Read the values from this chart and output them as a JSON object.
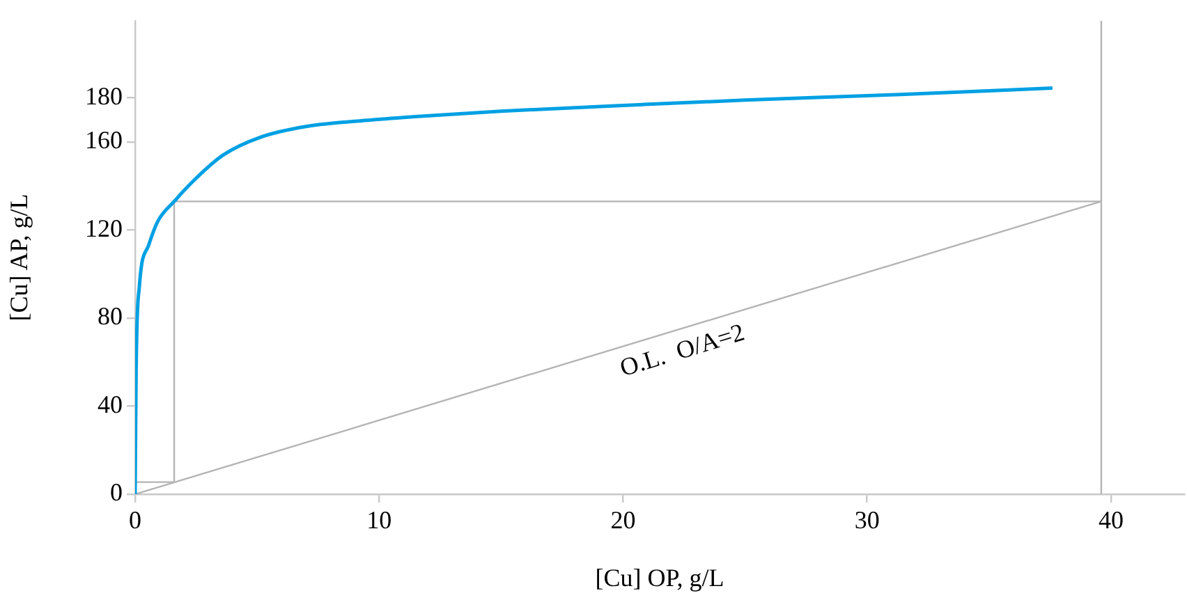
{
  "chart_data": {
    "type": "line",
    "xlabel": "[Cu] OP, g/L",
    "ylabel": "[Cu] AP, g/L",
    "xlim": [
      0,
      43
    ],
    "ylim": [
      0,
      215
    ],
    "xticks": [
      0,
      10,
      20,
      30,
      40
    ],
    "yticks": [
      0,
      40,
      80,
      120,
      160,
      180
    ],
    "grid": false,
    "legend": false,
    "marker": "none",
    "line_style": "solid",
    "series": [
      {
        "color": "#00a0e3",
        "x": [
          0,
          0.04,
          0.17,
          0.55,
          0.93,
          1.6,
          2.45,
          3.6,
          5.1,
          7.0,
          9.7,
          11.6,
          15,
          20.8,
          25,
          31.2,
          37.6
        ],
        "values": [
          0,
          56,
          94,
          113,
          124,
          133,
          143,
          154,
          162,
          167,
          170,
          171.6,
          174,
          177,
          179,
          181.5,
          184.5
        ]
      },
      {
        "color": "#b4b4b4",
        "x": [
          0,
          39.6
        ],
        "values": [
          0,
          133
        ]
      },
      {
        "color": "#b4b4b4",
        "x": [
          39.6,
          1.6,
          1.6,
          0
        ],
        "values": [
          133,
          133,
          5.5,
          5.5
        ]
      }
    ],
    "ref_lines": [
      {
        "axis": "x",
        "value": 39.6,
        "color": "#b4b4b4"
      }
    ],
    "annotations": [
      "O.L.  O/A=2"
    ]
  }
}
